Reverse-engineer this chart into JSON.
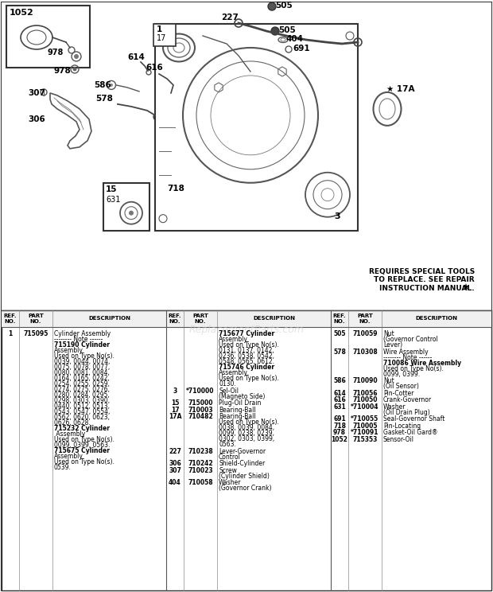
{
  "bg_color": "#f0ede8",
  "diagram_bg": "#ffffff",
  "border_color": "#444444",
  "watermark": "ReplacementParts.com",
  "special_note": "REQUIRES SPECIAL TOOLS\nTO REPLACE. SEE REPAIR\nINSTRUCTION MANUAL.",
  "col1_entries": [
    {
      "ref": "1",
      "part": "715095",
      "bold_part": true,
      "lines": [
        {
          "t": "Cylinder Assembly",
          "b": false
        },
        {
          "t": "-------- Note ------",
          "b": false
        },
        {
          "t": "715190 Cylinder",
          "b": true
        },
        {
          "t": "Assembly",
          "b": false
        },
        {
          "t": "Used on Type No(s).",
          "b": false
        },
        {
          "t": "0039, 0044, 0074,",
          "b": false
        },
        {
          "t": "0075, 0078, 0077,",
          "b": false
        },
        {
          "t": "0080, 0081, 0084,",
          "b": false
        },
        {
          "t": "0164, 0165, 0242,",
          "b": false
        },
        {
          "t": "0254, 0255, 0259,",
          "b": false
        },
        {
          "t": "0274, 0275, 0276,",
          "b": false
        },
        {
          "t": "0280, 0284, 0295,",
          "b": false
        },
        {
          "t": "0298, 0303, 0390,",
          "b": false
        },
        {
          "t": "0440, 0512, 0513,",
          "b": false
        },
        {
          "t": "0543, 0547, 0554,",
          "b": false
        },
        {
          "t": "0562, 0620, 0623,",
          "b": false
        },
        {
          "t": "0626, 0628.",
          "b": false
        },
        {
          "t": "715232 Cylinder",
          "b": true
        },
        {
          "t": " Assembly",
          "b": false
        },
        {
          "t": "Used on Type No(s).",
          "b": false
        },
        {
          "t": "0099, 0399, 0563.",
          "b": false
        },
        {
          "t": "715675 Cylinder",
          "b": true
        },
        {
          "t": "Assembly",
          "b": false
        },
        {
          "t": "Used on Type No(s).",
          "b": false
        },
        {
          "t": "0539.",
          "b": false
        }
      ]
    }
  ],
  "col2_entries": [
    {
      "ref": "",
      "part": "",
      "lines": [
        {
          "t": "715677 Cylinder",
          "b": true
        },
        {
          "t": "Assembly",
          "b": false
        },
        {
          "t": "Used on Type No(s).",
          "b": false
        },
        {
          "t": "0131, 0137, 0142,",
          "b": false
        },
        {
          "t": "0236, 0538, 0542,",
          "b": false
        },
        {
          "t": "0548, 0565, 0612.",
          "b": false
        },
        {
          "t": "715746 Cylinder",
          "b": true
        },
        {
          "t": "Assembly",
          "b": false
        },
        {
          "t": "Used on Type No(s).",
          "b": false
        },
        {
          "t": "0130.",
          "b": false
        }
      ]
    },
    {
      "ref": "3",
      "part": "*710000",
      "lines": [
        {
          "t": "Sel-Oil",
          "b": false
        },
        {
          "t": "(Magneto Side)",
          "b": false
        }
      ]
    },
    {
      "ref": "15",
      "part": "715000",
      "lines": [
        {
          "t": "Plug-Oil Drain",
          "b": false
        }
      ]
    },
    {
      "ref": "17",
      "part": "710003",
      "lines": [
        {
          "t": "Bearing-Ball",
          "b": false
        }
      ]
    },
    {
      "ref": "17A",
      "part": "710482",
      "lines": [
        {
          "t": "Bearing-Ball",
          "b": false
        },
        {
          "t": "Used on Type No(s).",
          "b": false
        },
        {
          "t": "0038, 0039, 0084,",
          "b": false
        },
        {
          "t": "0099, 0238, 0239,",
          "b": false
        },
        {
          "t": "0302, 0303, 0399,",
          "b": false
        },
        {
          "t": "0563.",
          "b": false
        }
      ]
    },
    {
      "ref": "227",
      "part": "710238",
      "lines": [
        {
          "t": "Lever-Governor",
          "b": false
        },
        {
          "t": "Control",
          "b": false
        }
      ]
    },
    {
      "ref": "306",
      "part": "710242",
      "lines": [
        {
          "t": "Shield-Cylinder",
          "b": false
        }
      ]
    },
    {
      "ref": "307",
      "part": "710023",
      "lines": [
        {
          "t": "Screw",
          "b": false
        },
        {
          "t": "(Cylinder Shield)",
          "b": false
        }
      ]
    },
    {
      "ref": "404",
      "part": "710058",
      "lines": [
        {
          "t": "Washer",
          "b": false
        },
        {
          "t": "(Governor Crank)",
          "b": false
        }
      ]
    }
  ],
  "col3_entries": [
    {
      "ref": "505",
      "part": "710059",
      "lines": [
        {
          "t": "Nut",
          "b": false
        },
        {
          "t": "(Governor Control",
          "b": false
        },
        {
          "t": "Lever)",
          "b": false
        }
      ]
    },
    {
      "ref": "578",
      "part": "710308",
      "lines": [
        {
          "t": "Wire Assembly",
          "b": false
        },
        {
          "t": "-------- Note ------",
          "b": false
        },
        {
          "t": "710086 Wire Assembly",
          "b": true
        },
        {
          "t": "Used on Type No(s).",
          "b": false
        },
        {
          "t": "0099, 0399.",
          "b": false
        }
      ]
    },
    {
      "ref": "586",
      "part": "710090",
      "lines": [
        {
          "t": "Nut",
          "b": false
        },
        {
          "t": "(Oil Sensor)",
          "b": false
        }
      ]
    },
    {
      "ref": "614",
      "part": "710056",
      "lines": [
        {
          "t": "Pin-Cotter",
          "b": false
        }
      ]
    },
    {
      "ref": "616",
      "part": "710050",
      "lines": [
        {
          "t": "Crank-Governor",
          "b": false
        }
      ]
    },
    {
      "ref": "631",
      "part": "*710004",
      "lines": [
        {
          "t": "Washer",
          "b": false
        },
        {
          "t": "(Oil Drain Plug)",
          "b": false
        }
      ]
    },
    {
      "ref": "691",
      "part": "*710055",
      "lines": [
        {
          "t": "Seal-Governor Shaft",
          "b": false
        }
      ]
    },
    {
      "ref": "718",
      "part": "710005",
      "lines": [
        {
          "t": "Pin-Locating",
          "b": false
        }
      ]
    },
    {
      "ref": "978",
      "part": "*710091",
      "lines": [
        {
          "t": "Gasket-Oil Gard®",
          "b": false
        }
      ]
    },
    {
      "ref": "1052",
      "part": "715353",
      "lines": [
        {
          "t": "Sensor-Oil",
          "b": false
        }
      ]
    }
  ]
}
